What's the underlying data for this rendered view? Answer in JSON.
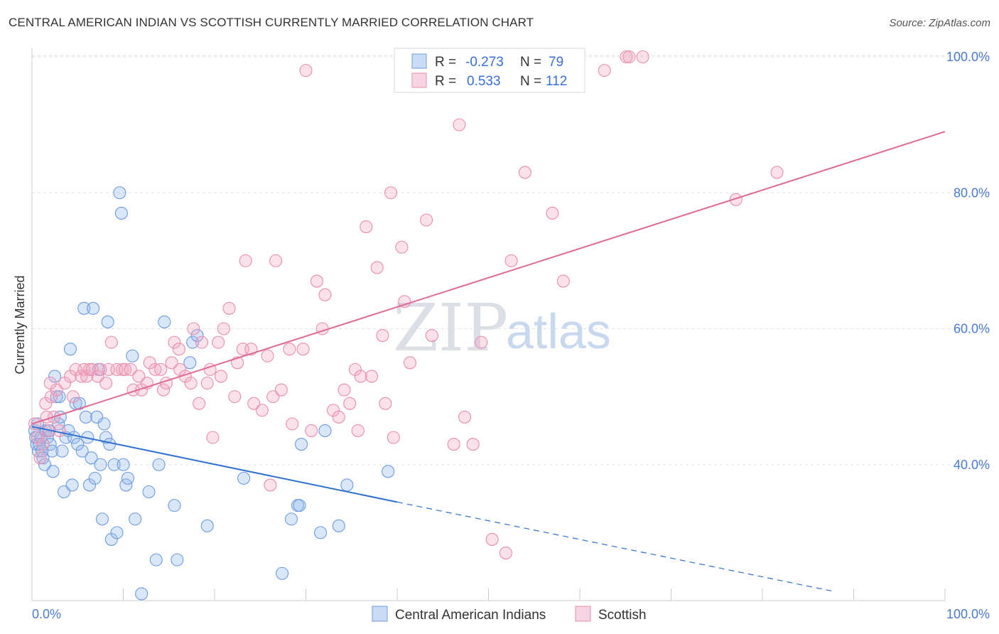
{
  "title": "CENTRAL AMERICAN INDIAN VS SCOTTISH CURRENTLY MARRIED CORRELATION CHART",
  "source": "Source: ZipAtlas.com",
  "watermark": {
    "zip": "ZIP",
    "atlas": "atlas"
  },
  "colors": {
    "blue": "#6f9be0",
    "blue_fill": "rgba(150,185,235,0.35)",
    "blue_line": "#2e6fd0",
    "pink": "#e98fae",
    "pink_fill": "rgba(240,170,195,0.35)",
    "pink_line": "#e06a94",
    "tick": "#4a7bd0"
  },
  "legend": {
    "r_label": "R =",
    "n_label": "N =",
    "blue": {
      "r": "-0.273",
      "n": "79"
    },
    "pink": {
      "r": "0.533",
      "n": "112"
    }
  },
  "chart_data": {
    "type": "scatter",
    "ylabel": "Currently Married",
    "x_range": [
      0,
      100
    ],
    "y_range": [
      20,
      100
    ],
    "x_tick_labels": [
      "0.0%",
      "100.0%"
    ],
    "y_tick_labels": [
      {
        "v": 40,
        "label": "40.0%"
      },
      {
        "v": 60,
        "label": "60.0%"
      },
      {
        "v": 80,
        "label": "80.0%"
      },
      {
        "v": 100,
        "label": "100.0%"
      }
    ],
    "series": [
      {
        "name": "Central American Indians",
        "color": "blue",
        "trend": {
          "x0": 0,
          "y0": 45.6,
          "x1": 40,
          "y1": 34.5,
          "dash_to_x": 88,
          "dash_to_y": 21.3
        },
        "points": [
          [
            0.3,
            45
          ],
          [
            0.4,
            44
          ],
          [
            0.5,
            43
          ],
          [
            0.7,
            42
          ],
          [
            0.8,
            43
          ],
          [
            1.0,
            44
          ],
          [
            1.2,
            41
          ],
          [
            1.4,
            40
          ],
          [
            1.5,
            45
          ],
          [
            1.7,
            44
          ],
          [
            2.0,
            43
          ],
          [
            2.2,
            42
          ],
          [
            2.3,
            39
          ],
          [
            2.5,
            53
          ],
          [
            2.7,
            50
          ],
          [
            2.9,
            46
          ],
          [
            3.1,
            47
          ],
          [
            3.3,
            42
          ],
          [
            3.5,
            36
          ],
          [
            3.7,
            44
          ],
          [
            4.0,
            45
          ],
          [
            4.2,
            57
          ],
          [
            4.4,
            37
          ],
          [
            4.6,
            44
          ],
          [
            4.8,
            49
          ],
          [
            5.0,
            43
          ],
          [
            5.2,
            49
          ],
          [
            5.5,
            42
          ],
          [
            5.7,
            63
          ],
          [
            5.9,
            47
          ],
          [
            6.1,
            44
          ],
          [
            6.3,
            37
          ],
          [
            6.5,
            41
          ],
          [
            6.7,
            63
          ],
          [
            6.9,
            38
          ],
          [
            7.1,
            47
          ],
          [
            7.3,
            54
          ],
          [
            7.5,
            40
          ],
          [
            7.7,
            32
          ],
          [
            7.9,
            46
          ],
          [
            8.1,
            44
          ],
          [
            8.3,
            61
          ],
          [
            8.5,
            43
          ],
          [
            8.7,
            29
          ],
          [
            9.0,
            40
          ],
          [
            9.3,
            30
          ],
          [
            9.6,
            80
          ],
          [
            9.8,
            77
          ],
          [
            10.0,
            40
          ],
          [
            10.3,
            37
          ],
          [
            10.5,
            38
          ],
          [
            11.0,
            56
          ],
          [
            11.3,
            32
          ],
          [
            12.0,
            21
          ],
          [
            12.8,
            36
          ],
          [
            13.6,
            26
          ],
          [
            13.9,
            40
          ],
          [
            14.5,
            61
          ],
          [
            15.6,
            34
          ],
          [
            15.9,
            26
          ],
          [
            17.3,
            55
          ],
          [
            17.6,
            58
          ],
          [
            18.1,
            59
          ],
          [
            19.2,
            31
          ],
          [
            23.2,
            38
          ],
          [
            27.4,
            24
          ],
          [
            28.4,
            32
          ],
          [
            29.1,
            34
          ],
          [
            29.3,
            34
          ],
          [
            29.5,
            43
          ],
          [
            31.6,
            30
          ],
          [
            32.1,
            45
          ],
          [
            33.6,
            31
          ],
          [
            34.5,
            37
          ],
          [
            39.0,
            39
          ],
          [
            0.6,
            46
          ],
          [
            1.1,
            42
          ],
          [
            1.9,
            45
          ],
          [
            3.0,
            50
          ]
        ]
      },
      {
        "name": "Scottish",
        "color": "pink",
        "trend": {
          "x0": 0,
          "y0": 46.0,
          "x1": 100,
          "y1": 89.0
        },
        "points": [
          [
            0.3,
            46
          ],
          [
            0.6,
            44
          ],
          [
            0.9,
            41
          ],
          [
            1.2,
            43
          ],
          [
            1.5,
            49
          ],
          [
            1.8,
            45
          ],
          [
            2.1,
            50
          ],
          [
            2.4,
            47
          ],
          [
            2.7,
            51
          ],
          [
            3.0,
            45
          ],
          [
            3.6,
            52
          ],
          [
            4.2,
            53
          ],
          [
            4.5,
            50
          ],
          [
            4.8,
            54
          ],
          [
            5.4,
            53
          ],
          [
            5.7,
            54
          ],
          [
            6.0,
            53
          ],
          [
            6.3,
            54
          ],
          [
            6.6,
            54
          ],
          [
            7.2,
            53
          ],
          [
            7.5,
            54
          ],
          [
            8.1,
            52
          ],
          [
            8.4,
            54
          ],
          [
            8.7,
            58
          ],
          [
            9.3,
            54
          ],
          [
            9.9,
            54
          ],
          [
            10.2,
            54
          ],
          [
            10.8,
            54
          ],
          [
            11.1,
            51
          ],
          [
            11.7,
            53
          ],
          [
            12.0,
            51
          ],
          [
            12.6,
            52
          ],
          [
            12.9,
            55
          ],
          [
            13.5,
            54
          ],
          [
            14.1,
            54
          ],
          [
            14.4,
            51
          ],
          [
            14.7,
            52
          ],
          [
            15.3,
            55
          ],
          [
            15.6,
            58
          ],
          [
            16.2,
            54
          ],
          [
            16.8,
            53
          ],
          [
            17.4,
            52
          ],
          [
            17.7,
            60
          ],
          [
            18.3,
            49
          ],
          [
            18.6,
            58
          ],
          [
            19.2,
            52
          ],
          [
            19.5,
            54
          ],
          [
            19.8,
            44
          ],
          [
            20.4,
            58
          ],
          [
            20.7,
            53
          ],
          [
            21.0,
            60
          ],
          [
            21.6,
            63
          ],
          [
            22.2,
            50
          ],
          [
            22.5,
            55
          ],
          [
            23.1,
            57
          ],
          [
            23.4,
            70
          ],
          [
            24.0,
            57
          ],
          [
            24.3,
            49
          ],
          [
            25.2,
            48
          ],
          [
            25.8,
            56
          ],
          [
            26.1,
            37
          ],
          [
            26.4,
            50
          ],
          [
            26.7,
            70
          ],
          [
            27.3,
            51
          ],
          [
            28.2,
            57
          ],
          [
            28.5,
            46
          ],
          [
            29.7,
            57
          ],
          [
            30.6,
            45
          ],
          [
            31.2,
            67
          ],
          [
            31.8,
            60
          ],
          [
            32.1,
            65
          ],
          [
            33.0,
            48
          ],
          [
            33.6,
            47
          ],
          [
            34.2,
            51
          ],
          [
            34.8,
            49
          ],
          [
            35.4,
            54
          ],
          [
            35.7,
            45
          ],
          [
            36.0,
            53
          ],
          [
            36.6,
            75
          ],
          [
            37.2,
            53
          ],
          [
            37.8,
            69
          ],
          [
            38.4,
            59
          ],
          [
            38.7,
            49
          ],
          [
            39.3,
            80
          ],
          [
            39.6,
            44
          ],
          [
            40.5,
            72
          ],
          [
            40.8,
            64
          ],
          [
            41.4,
            55
          ],
          [
            43.2,
            76
          ],
          [
            43.8,
            59
          ],
          [
            46.2,
            43
          ],
          [
            46.8,
            90
          ],
          [
            47.4,
            47
          ],
          [
            48.3,
            43
          ],
          [
            49.2,
            58
          ],
          [
            50.1,
            99
          ],
          [
            50.4,
            29
          ],
          [
            51.9,
            27
          ],
          [
            52.5,
            70
          ],
          [
            54.0,
            83
          ],
          [
            57.0,
            77
          ],
          [
            58.2,
            67
          ],
          [
            62.7,
            98
          ],
          [
            65.1,
            100
          ],
          [
            65.4,
            100
          ],
          [
            66.9,
            100
          ],
          [
            77.1,
            79
          ],
          [
            81.6,
            83
          ],
          [
            30.0,
            98
          ],
          [
            16.1,
            57
          ],
          [
            1.6,
            47
          ],
          [
            2.0,
            52
          ]
        ]
      }
    ],
    "grid": true,
    "legend_position": "top-center"
  }
}
